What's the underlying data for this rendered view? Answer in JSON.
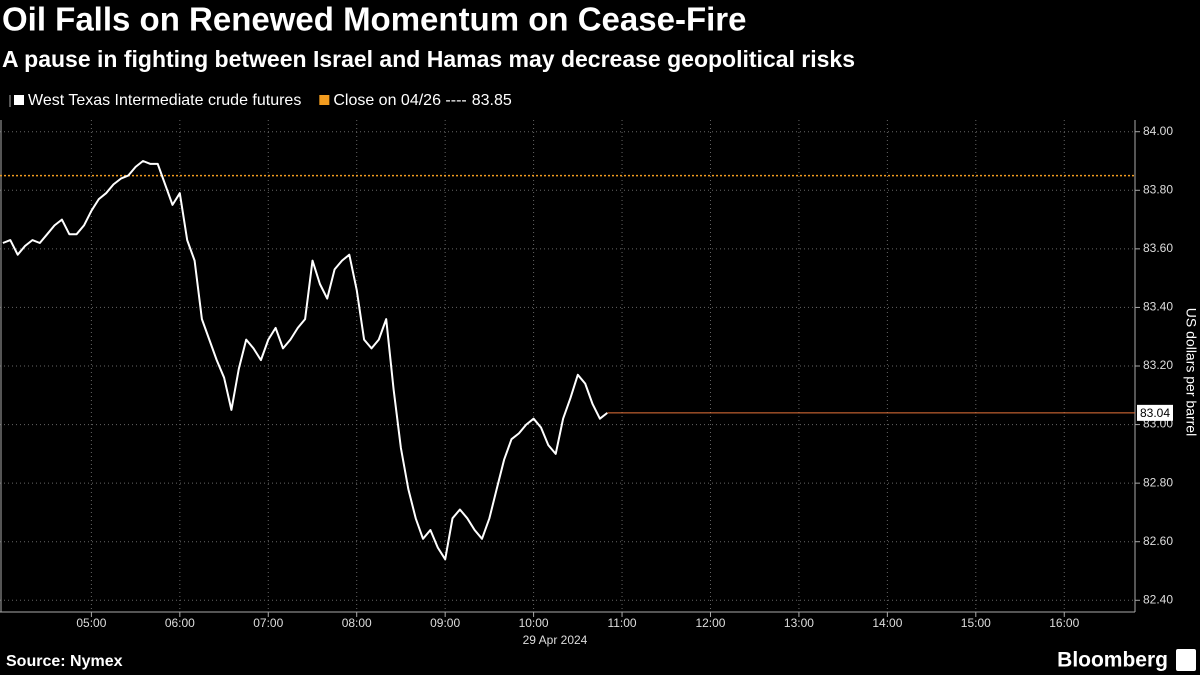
{
  "chart_data": {
    "type": "line",
    "title": "Oil Falls on Renewed Momentum on Cease-Fire",
    "subtitle": "A pause in fighting between Israel and Hamas may decrease geopolitical risks",
    "source": "Source: Nymex",
    "brand": "Bloomberg",
    "y_label": "US dollars per barrel",
    "x_sublabel": "29 Apr 2024",
    "x": [
      "04:00",
      "04:05",
      "04:10",
      "04:15",
      "04:20",
      "04:25",
      "04:30",
      "04:35",
      "04:40",
      "04:45",
      "04:50",
      "04:55",
      "05:00",
      "05:05",
      "05:10",
      "05:15",
      "05:20",
      "05:25",
      "05:30",
      "05:35",
      "05:40",
      "05:45",
      "05:50",
      "05:55",
      "06:00",
      "06:05",
      "06:10",
      "06:15",
      "06:20",
      "06:25",
      "06:30",
      "06:35",
      "06:40",
      "06:45",
      "06:50",
      "06:55",
      "07:00",
      "07:05",
      "07:10",
      "07:15",
      "07:20",
      "07:25",
      "07:30",
      "07:35",
      "07:40",
      "07:45",
      "07:50",
      "07:55",
      "08:00",
      "08:05",
      "08:10",
      "08:15",
      "08:20",
      "08:25",
      "08:30",
      "08:35",
      "08:40",
      "08:45",
      "08:50",
      "08:55",
      "09:00",
      "09:05",
      "09:10",
      "09:15",
      "09:20",
      "09:25",
      "09:30",
      "09:35",
      "09:40",
      "09:45",
      "09:50",
      "09:55",
      "10:00",
      "10:05",
      "10:10",
      "10:15",
      "10:20",
      "10:25",
      "10:30",
      "10:35",
      "10:40",
      "10:45",
      "10:50"
    ],
    "series": [
      {
        "name": "West Texas Intermediate crude futures",
        "color": "#ffffff",
        "values": [
          83.62,
          83.63,
          83.58,
          83.61,
          83.63,
          83.62,
          83.65,
          83.68,
          83.7,
          83.65,
          83.65,
          83.68,
          83.73,
          83.77,
          83.79,
          83.82,
          83.84,
          83.85,
          83.88,
          83.9,
          83.89,
          83.89,
          83.82,
          83.75,
          83.79,
          83.63,
          83.56,
          83.36,
          83.29,
          83.22,
          83.16,
          83.05,
          83.19,
          83.29,
          83.26,
          83.22,
          83.29,
          83.33,
          83.26,
          83.29,
          83.33,
          83.36,
          83.56,
          83.48,
          83.43,
          83.53,
          83.56,
          83.58,
          83.46,
          83.29,
          83.26,
          83.29,
          83.36,
          83.12,
          82.92,
          82.78,
          82.68,
          82.61,
          82.64,
          82.58,
          82.54,
          82.68,
          82.71,
          82.68,
          82.64,
          82.61,
          82.68,
          82.78,
          82.88,
          82.95,
          82.97,
          83.0,
          83.02,
          82.99,
          82.93,
          82.9,
          83.02,
          83.09,
          83.17,
          83.14,
          83.07,
          83.02,
          83.04
        ]
      }
    ],
    "reference_lines": [
      {
        "name": "Close on 04/26 ----",
        "value": 83.85,
        "color": "#f29c1f"
      }
    ],
    "last_value_color": "#e8743b",
    "xlim": [
      "03:58",
      "16:48"
    ],
    "xticks": [
      "05:00",
      "06:00",
      "07:00",
      "08:00",
      "09:00",
      "10:00",
      "11:00",
      "12:00",
      "13:00",
      "14:00",
      "15:00",
      "16:00"
    ],
    "ylim": [
      82.36,
      84.04
    ],
    "yticks": [
      {
        "value": 82.4,
        "label": "82.40"
      },
      {
        "value": 82.6,
        "label": "82.60"
      },
      {
        "value": 82.8,
        "label": "82.80"
      },
      {
        "value": 83.0,
        "label": "83.00"
      },
      {
        "value": 83.2,
        "label": "83.20"
      },
      {
        "value": 83.4,
        "label": "83.40"
      },
      {
        "value": 83.6,
        "label": "83.60"
      },
      {
        "value": 83.8,
        "label": "83.80"
      },
      {
        "value": 84.0,
        "label": "84.00"
      }
    ],
    "grid": true
  }
}
